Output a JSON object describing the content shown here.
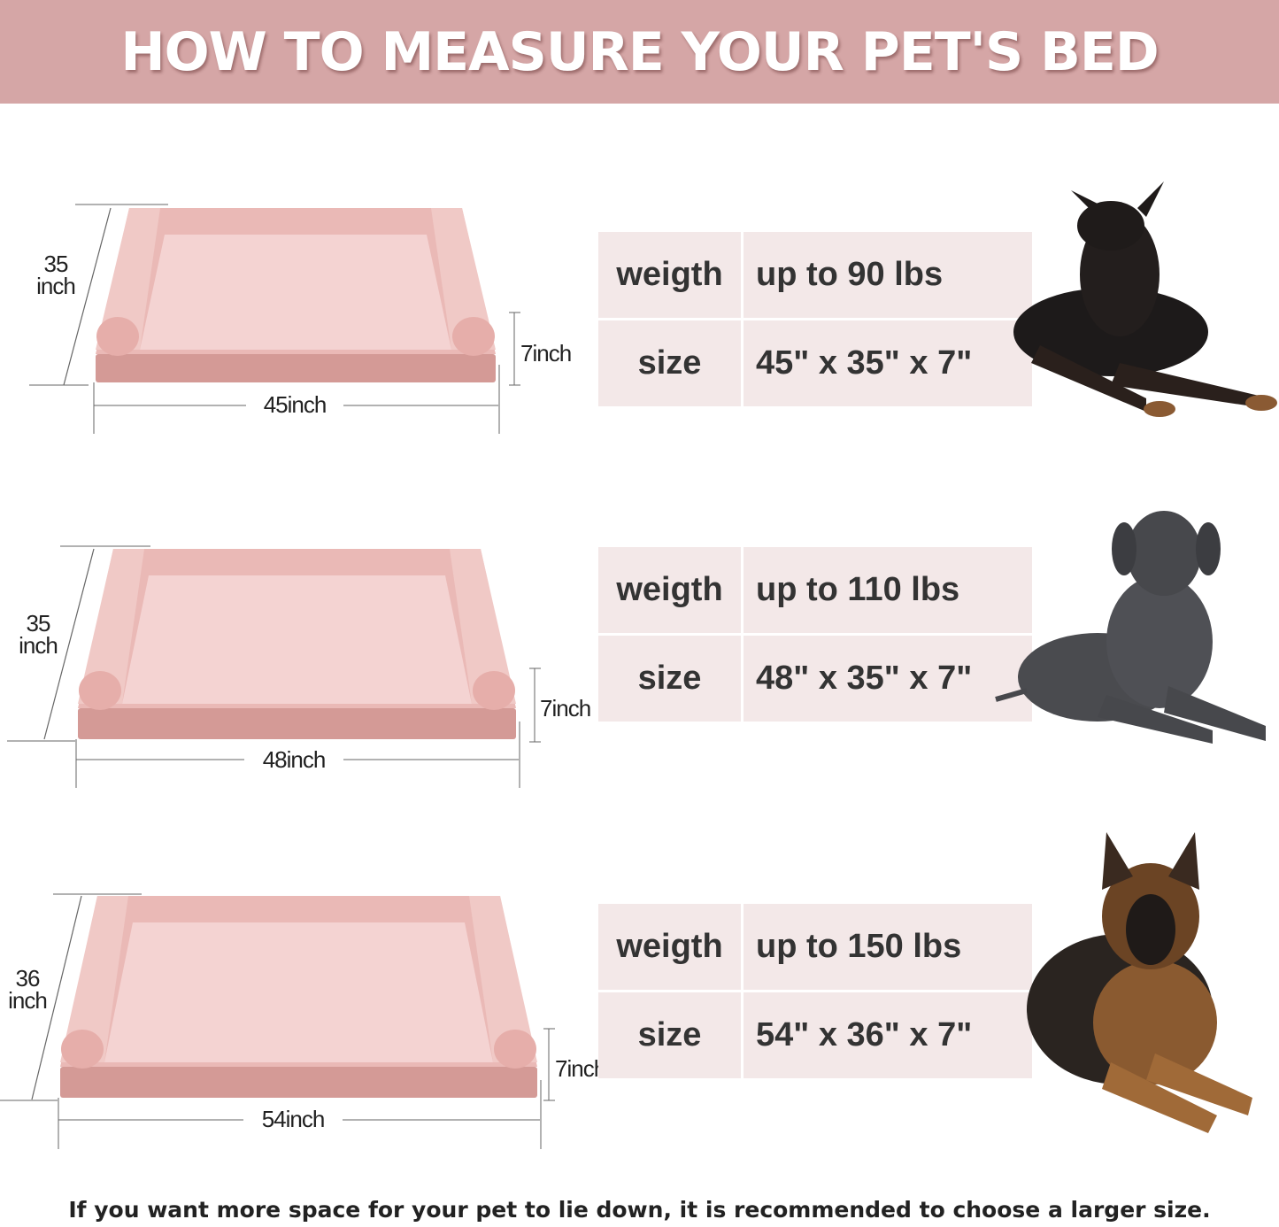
{
  "header": {
    "title": "HOW TO MEASURE YOUR PET'S BED"
  },
  "colors": {
    "header_bg": "#d5a6a6",
    "table_bg": "#f3e8e8",
    "bed_pink": "#e9b8b6"
  },
  "beds": [
    {
      "depth_value": "35",
      "depth_unit": "inch",
      "width_label": "45inch",
      "height_label": "7inch",
      "table": {
        "weight_key": "weigth",
        "weight_value": "up to 90 lbs",
        "size_key": "size",
        "size_value": "45\" x 35\" x 7\""
      },
      "dog": "doberman-icon"
    },
    {
      "depth_value": "35",
      "depth_unit": "inch",
      "width_label": "48inch",
      "height_label": "7inch",
      "table": {
        "weight_key": "weigth",
        "weight_value": "up to 110 lbs",
        "size_key": "size",
        "size_value": "48\" x 35\" x 7\""
      },
      "dog": "great-dane-icon"
    },
    {
      "depth_value": "36",
      "depth_unit": "inch",
      "width_label": "54inch",
      "height_label": "7inch",
      "table": {
        "weight_key": "weigth",
        "weight_value": "up to 150 lbs",
        "size_key": "size",
        "size_value": "54\" x 36\" x 7\""
      },
      "dog": "german-shepherd-icon"
    }
  ],
  "footer": {
    "note": "If you want more space for your pet to lie down, it is recommended to choose a larger size."
  }
}
